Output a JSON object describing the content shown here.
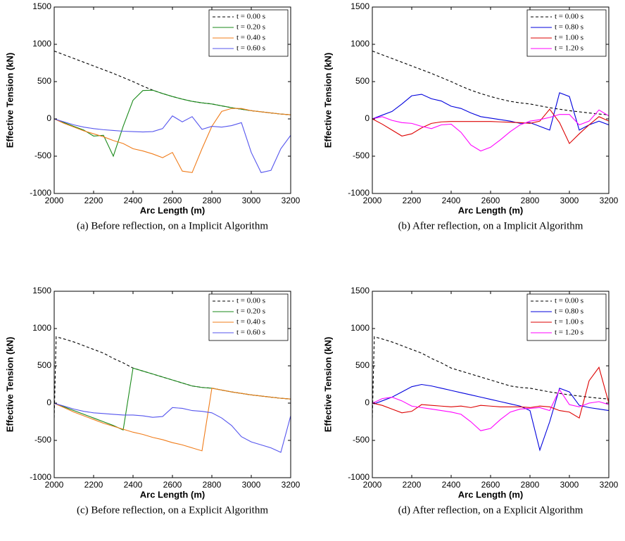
{
  "chart_data": [
    {
      "type": "line",
      "caption": "(a)  Before reflection, on a Implicit Algorithm",
      "xlabel": "Arc Length (m)",
      "ylabel": "Effective Tension (kN)",
      "x": [
        2000,
        2050,
        2100,
        2150,
        2200,
        2250,
        2300,
        2350,
        2400,
        2450,
        2500,
        2550,
        2600,
        2650,
        2700,
        2750,
        2800,
        2850,
        2900,
        2950,
        3000,
        3050,
        3100,
        3150,
        3200
      ],
      "xlim": [
        2000,
        3200
      ],
      "xticks": [
        2000,
        2200,
        2400,
        2600,
        2800,
        3000,
        3200
      ],
      "ylim": [
        -1000,
        1500
      ],
      "yticks": [
        -1000,
        -500,
        0,
        500,
        1000,
        1500
      ],
      "legend": "upper right",
      "series": [
        {
          "name": "t = 0.00 s",
          "color": "#000000",
          "style": "dashed",
          "values": [
            910,
            860,
            810,
            760,
            710,
            660,
            610,
            555,
            500,
            440,
            385,
            340,
            300,
            265,
            235,
            215,
            200,
            175,
            150,
            130,
            110,
            95,
            80,
            65,
            55
          ]
        },
        {
          "name": "t = 0.20 s",
          "color": "#1a8a1a",
          "style": "solid",
          "values": [
            0,
            -50,
            -100,
            -150,
            -230,
            -220,
            -500,
            -100,
            250,
            380,
            385,
            340,
            300,
            265,
            235,
            215,
            200,
            175,
            150,
            130,
            110,
            95,
            80,
            65,
            55
          ]
        },
        {
          "name": "t = 0.40 s",
          "color": "#f07c1a",
          "style": "solid",
          "values": [
            0,
            -60,
            -110,
            -160,
            -200,
            -240,
            -290,
            -330,
            -400,
            -430,
            -470,
            -520,
            -450,
            -700,
            -720,
            -400,
            -100,
            100,
            140,
            140,
            110,
            95,
            80,
            65,
            55
          ]
        },
        {
          "name": "t = 0.60 s",
          "color": "#5555ee",
          "style": "solid",
          "values": [
            0,
            -40,
            -80,
            -110,
            -130,
            -145,
            -155,
            -165,
            -170,
            -175,
            -170,
            -130,
            40,
            -40,
            30,
            -140,
            -100,
            -110,
            -90,
            -50,
            -450,
            -720,
            -690,
            -400,
            -220
          ]
        }
      ]
    },
    {
      "type": "line",
      "caption": "(b)  After reflection, on a Implicit Algorithm",
      "xlabel": "Arc Length (m)",
      "ylabel": "Effective Tension (kN)",
      "x": [
        2000,
        2050,
        2100,
        2150,
        2200,
        2250,
        2300,
        2350,
        2400,
        2450,
        2500,
        2550,
        2600,
        2650,
        2700,
        2750,
        2800,
        2850,
        2900,
        2950,
        3000,
        3050,
        3100,
        3150,
        3200
      ],
      "xlim": [
        2000,
        3200
      ],
      "xticks": [
        2000,
        2200,
        2400,
        2600,
        2800,
        3000,
        3200
      ],
      "ylim": [
        -1000,
        1500
      ],
      "yticks": [
        -1000,
        -500,
        0,
        500,
        1000,
        1500
      ],
      "legend": "upper right",
      "series": [
        {
          "name": "t = 0.00 s",
          "color": "#000000",
          "style": "dashed",
          "values": [
            910,
            860,
            810,
            760,
            710,
            660,
            610,
            555,
            500,
            440,
            385,
            340,
            300,
            265,
            235,
            215,
            200,
            175,
            150,
            130,
            110,
            95,
            80,
            65,
            55
          ]
        },
        {
          "name": "t = 0.80 s",
          "color": "#0000dd",
          "style": "solid",
          "values": [
            0,
            50,
            100,
            200,
            310,
            330,
            270,
            240,
            170,
            140,
            80,
            30,
            10,
            -10,
            -30,
            -60,
            -50,
            -100,
            -150,
            350,
            300,
            -150,
            -80,
            -30,
            -80
          ]
        },
        {
          "name": "t = 1.00 s",
          "color": "#dd0000",
          "style": "solid",
          "values": [
            0,
            -70,
            -150,
            -230,
            -200,
            -120,
            -60,
            -40,
            -35,
            -35,
            -35,
            -35,
            -35,
            -40,
            -45,
            -50,
            -60,
            -30,
            130,
            -50,
            -330,
            -200,
            -80,
            30,
            -30
          ]
        },
        {
          "name": "t = 1.20 s",
          "color": "#ff00ff",
          "style": "solid",
          "values": [
            0,
            30,
            -20,
            -50,
            -60,
            -100,
            -130,
            -80,
            -70,
            -180,
            -350,
            -430,
            -380,
            -280,
            -170,
            -80,
            -30,
            -10,
            20,
            60,
            60,
            -80,
            -30,
            120,
            40
          ]
        }
      ]
    },
    {
      "type": "line",
      "caption": "(c)  Before reflection, on a Explicit Algorithm",
      "xlabel": "Arc Length (m)",
      "ylabel": "Effective Tension (kN)",
      "x": [
        2000,
        2010,
        2050,
        2100,
        2150,
        2200,
        2250,
        2300,
        2350,
        2400,
        2450,
        2500,
        2550,
        2600,
        2650,
        2700,
        2750,
        2800,
        2850,
        2900,
        2950,
        3000,
        3050,
        3100,
        3150,
        3200
      ],
      "xlim": [
        2000,
        3200
      ],
      "xticks": [
        2000,
        2200,
        2400,
        2600,
        2800,
        3000,
        3200
      ],
      "ylim": [
        -1000,
        1500
      ],
      "yticks": [
        -1000,
        -500,
        0,
        500,
        1000,
        1500
      ],
      "legend": "upper right",
      "series": [
        {
          "name": "t = 0.00 s",
          "color": "#000000",
          "style": "dashed",
          "values": [
            -200,
            890,
            860,
            820,
            770,
            720,
            670,
            600,
            540,
            470,
            430,
            390,
            350,
            310,
            270,
            230,
            210,
            200,
            175,
            150,
            130,
            110,
            95,
            80,
            65,
            55
          ]
        },
        {
          "name": "t = 0.20 s",
          "color": "#1a8a1a",
          "style": "solid",
          "values": [
            0,
            -10,
            -50,
            -100,
            -150,
            -200,
            -250,
            -300,
            -360,
            470,
            430,
            390,
            350,
            310,
            270,
            230,
            210,
            200,
            175,
            150,
            130,
            110,
            95,
            80,
            65,
            55
          ]
        },
        {
          "name": "t = 0.40 s",
          "color": "#f07c1a",
          "style": "solid",
          "values": [
            0,
            -15,
            -60,
            -120,
            -170,
            -220,
            -270,
            -310,
            -350,
            -390,
            -420,
            -460,
            -490,
            -530,
            -560,
            -600,
            -640,
            200,
            175,
            150,
            130,
            110,
            95,
            80,
            65,
            55
          ]
        },
        {
          "name": "t = 0.60 s",
          "color": "#5555ee",
          "style": "solid",
          "values": [
            0,
            -10,
            -40,
            -80,
            -110,
            -130,
            -140,
            -150,
            -160,
            -160,
            -170,
            -190,
            -180,
            -60,
            -70,
            -100,
            -110,
            -130,
            -200,
            -300,
            -450,
            -520,
            -560,
            -600,
            -660,
            -170
          ]
        }
      ]
    },
    {
      "type": "line",
      "caption": "(d)  After reflection, on a Explicit Algorithm",
      "xlabel": "Arc Length (m)",
      "ylabel": "Effective Tension (kN)",
      "x": [
        2000,
        2010,
        2050,
        2100,
        2150,
        2200,
        2250,
        2300,
        2350,
        2400,
        2450,
        2500,
        2550,
        2600,
        2650,
        2700,
        2750,
        2800,
        2850,
        2900,
        2950,
        3000,
        3050,
        3100,
        3150,
        3200
      ],
      "xlim": [
        2000,
        3200
      ],
      "xticks": [
        2000,
        2200,
        2400,
        2600,
        2800,
        3000,
        3200
      ],
      "ylim": [
        -1000,
        1500
      ],
      "yticks": [
        -1000,
        -500,
        0,
        500,
        1000,
        1500
      ],
      "legend": "upper right",
      "series": [
        {
          "name": "t = 0.00 s",
          "color": "#000000",
          "style": "dashed",
          "values": [
            -200,
            890,
            860,
            820,
            770,
            720,
            670,
            600,
            540,
            470,
            430,
            390,
            350,
            310,
            270,
            230,
            210,
            200,
            175,
            150,
            130,
            110,
            95,
            80,
            65,
            55
          ]
        },
        {
          "name": "t = 0.80 s",
          "color": "#0000dd",
          "style": "solid",
          "values": [
            0,
            -10,
            30,
            80,
            150,
            220,
            250,
            230,
            200,
            170,
            140,
            110,
            80,
            50,
            20,
            -10,
            -40,
            -100,
            -630,
            -250,
            200,
            150,
            -30,
            -60,
            -80,
            -100
          ]
        },
        {
          "name": "t = 1.00 s",
          "color": "#dd0000",
          "style": "solid",
          "values": [
            0,
            -5,
            -30,
            -80,
            -130,
            -110,
            -20,
            -30,
            -40,
            -50,
            -40,
            -60,
            -30,
            -40,
            -50,
            -50,
            -50,
            -60,
            -40,
            -50,
            -100,
            -120,
            -200,
            300,
            480,
            0
          ]
        },
        {
          "name": "t = 1.20 s",
          "color": "#ff00ff",
          "style": "solid",
          "values": [
            0,
            10,
            60,
            80,
            30,
            -40,
            -60,
            -80,
            -100,
            -120,
            -150,
            -250,
            -370,
            -340,
            -220,
            -120,
            -80,
            -70,
            -60,
            -100,
            180,
            -20,
            -50,
            0,
            20,
            -20
          ]
        }
      ]
    }
  ]
}
